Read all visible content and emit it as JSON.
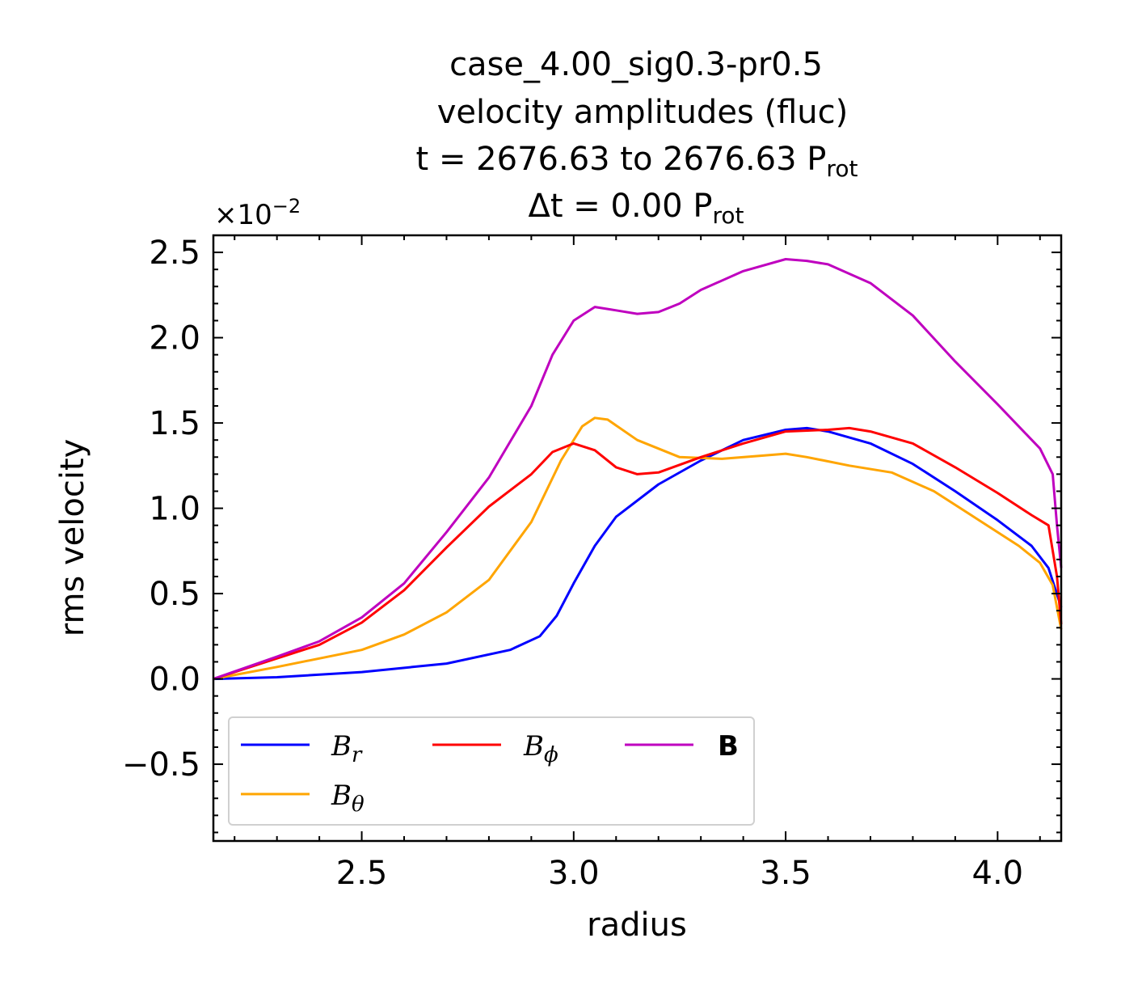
{
  "chart_data": {
    "type": "line",
    "title_lines": [
      "case_4.00_sig0.3-pr0.5",
      "velocity amplitudes (fluc)",
      "t = 2676.63 to 2676.63 P",
      "Δt = 0.00 P"
    ],
    "title_subscripts": [
      "rot",
      "rot"
    ],
    "offset_text": "×10",
    "offset_exponent": "−2",
    "xlabel": "radius",
    "ylabel": "rms velocity",
    "xlim": [
      2.15,
      4.15
    ],
    "ylim": [
      -0.95,
      2.6
    ],
    "xticks": [
      2.5,
      3.0,
      3.5,
      4.0
    ],
    "xtick_labels": [
      "2.5",
      "3.0",
      "3.5",
      "4.0"
    ],
    "yticks": [
      -0.5,
      0.0,
      0.5,
      1.0,
      1.5,
      2.0,
      2.5
    ],
    "ytick_labels": [
      "−0.5",
      "0.0",
      "0.5",
      "1.0",
      "1.5",
      "2.0",
      "2.5"
    ],
    "grid": false,
    "legend_position": "lower-left",
    "series": [
      {
        "name": "B_r",
        "label_main": "B",
        "label_sub": "r",
        "color": "#0000ff",
        "x": [
          2.15,
          2.3,
          2.5,
          2.7,
          2.85,
          2.92,
          2.96,
          3.0,
          3.05,
          3.1,
          3.2,
          3.3,
          3.4,
          3.5,
          3.55,
          3.6,
          3.7,
          3.8,
          3.9,
          4.0,
          4.08,
          4.12,
          4.15
        ],
        "y": [
          0.0,
          0.01,
          0.04,
          0.09,
          0.17,
          0.25,
          0.37,
          0.56,
          0.78,
          0.95,
          1.14,
          1.28,
          1.4,
          1.46,
          1.47,
          1.45,
          1.38,
          1.26,
          1.1,
          0.93,
          0.78,
          0.65,
          0.42
        ]
      },
      {
        "name": "B_theta",
        "label_main": "B",
        "label_sub": "θ",
        "color": "#ffa500",
        "x": [
          2.15,
          2.3,
          2.5,
          2.6,
          2.7,
          2.8,
          2.9,
          2.97,
          3.02,
          3.05,
          3.08,
          3.15,
          3.25,
          3.35,
          3.45,
          3.5,
          3.55,
          3.65,
          3.75,
          3.85,
          3.95,
          4.05,
          4.1,
          4.13,
          4.15
        ],
        "y": [
          0.0,
          0.07,
          0.17,
          0.26,
          0.39,
          0.58,
          0.92,
          1.28,
          1.48,
          1.53,
          1.52,
          1.4,
          1.3,
          1.29,
          1.31,
          1.32,
          1.3,
          1.25,
          1.21,
          1.1,
          0.94,
          0.78,
          0.68,
          0.55,
          0.29
        ]
      },
      {
        "name": "B_phi",
        "label_main": "B",
        "label_sub": "ϕ",
        "color": "#ff0000",
        "x": [
          2.15,
          2.3,
          2.4,
          2.5,
          2.6,
          2.7,
          2.8,
          2.9,
          2.95,
          3.0,
          3.05,
          3.1,
          3.15,
          3.2,
          3.3,
          3.4,
          3.5,
          3.6,
          3.65,
          3.7,
          3.8,
          3.9,
          4.0,
          4.08,
          4.12,
          4.14,
          4.15
        ],
        "y": [
          0.0,
          0.12,
          0.2,
          0.33,
          0.52,
          0.77,
          1.01,
          1.2,
          1.33,
          1.38,
          1.34,
          1.24,
          1.2,
          1.21,
          1.3,
          1.38,
          1.45,
          1.46,
          1.47,
          1.45,
          1.38,
          1.24,
          1.09,
          0.96,
          0.9,
          0.6,
          0.32
        ]
      },
      {
        "name": "B",
        "label_main": "B",
        "label_sub": "",
        "color": "#bf00bf",
        "x": [
          2.15,
          2.3,
          2.4,
          2.5,
          2.6,
          2.7,
          2.8,
          2.9,
          2.95,
          3.0,
          3.05,
          3.1,
          3.15,
          3.2,
          3.25,
          3.3,
          3.4,
          3.5,
          3.55,
          3.6,
          3.7,
          3.8,
          3.9,
          4.0,
          4.05,
          4.1,
          4.13,
          4.14,
          4.15
        ],
        "y": [
          0.0,
          0.13,
          0.22,
          0.36,
          0.56,
          0.86,
          1.18,
          1.6,
          1.9,
          2.1,
          2.18,
          2.16,
          2.14,
          2.15,
          2.2,
          2.28,
          2.39,
          2.46,
          2.45,
          2.43,
          2.32,
          2.13,
          1.86,
          1.61,
          1.48,
          1.35,
          1.2,
          0.9,
          0.65
        ]
      }
    ]
  }
}
